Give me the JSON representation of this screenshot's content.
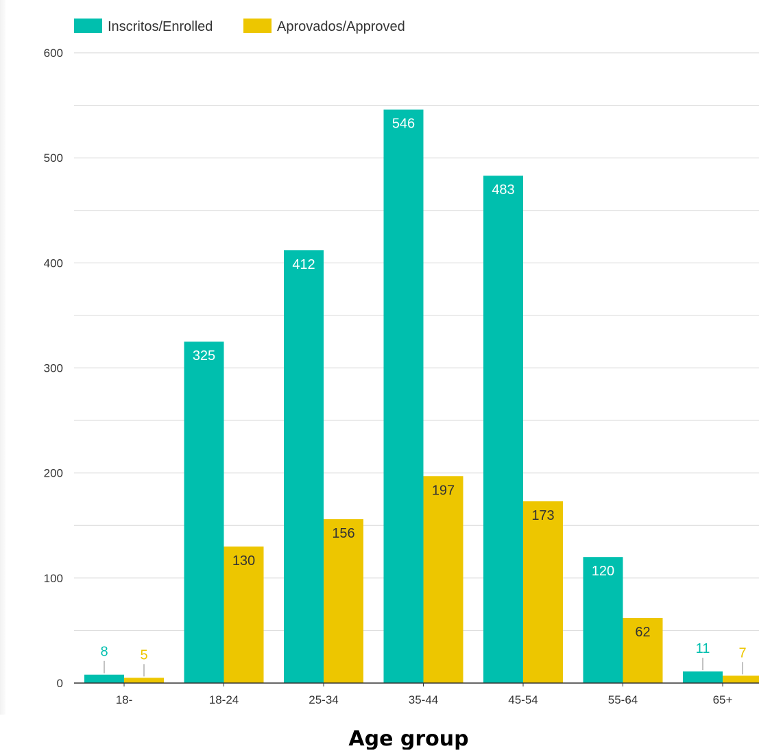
{
  "chart_data": {
    "type": "bar",
    "title": "",
    "xlabel": "Age group",
    "ylabel": "",
    "categories": [
      "18-",
      "18-24",
      "25-34",
      "35-44",
      "45-54",
      "55-64",
      "65+"
    ],
    "series": [
      {
        "name": "Inscritos/Enrolled",
        "color": "#00BFAE",
        "values": [
          8,
          325,
          412,
          546,
          483,
          120,
          11
        ],
        "labels": [
          "8",
          "325",
          "412",
          "546",
          "483",
          "120",
          "11"
        ]
      },
      {
        "name": "Aprovados/Approved",
        "color": "#EDC600",
        "values": [
          5,
          130,
          156,
          197,
          173,
          62,
          7
        ],
        "labels": [
          "5",
          "130",
          "156",
          "197",
          "173",
          "62",
          "7"
        ]
      }
    ],
    "ylim": [
      0,
      600
    ],
    "yticks": [
      "0",
      "100",
      "200",
      "300",
      "400",
      "500",
      "600"
    ],
    "grid": true,
    "legend_position": "top-left",
    "label_text_colors": {
      "inside_enrolled": "#ffffff",
      "inside_approved": "#333333"
    },
    "grid_color": "#dddddd",
    "axis_color": "#333333"
  }
}
